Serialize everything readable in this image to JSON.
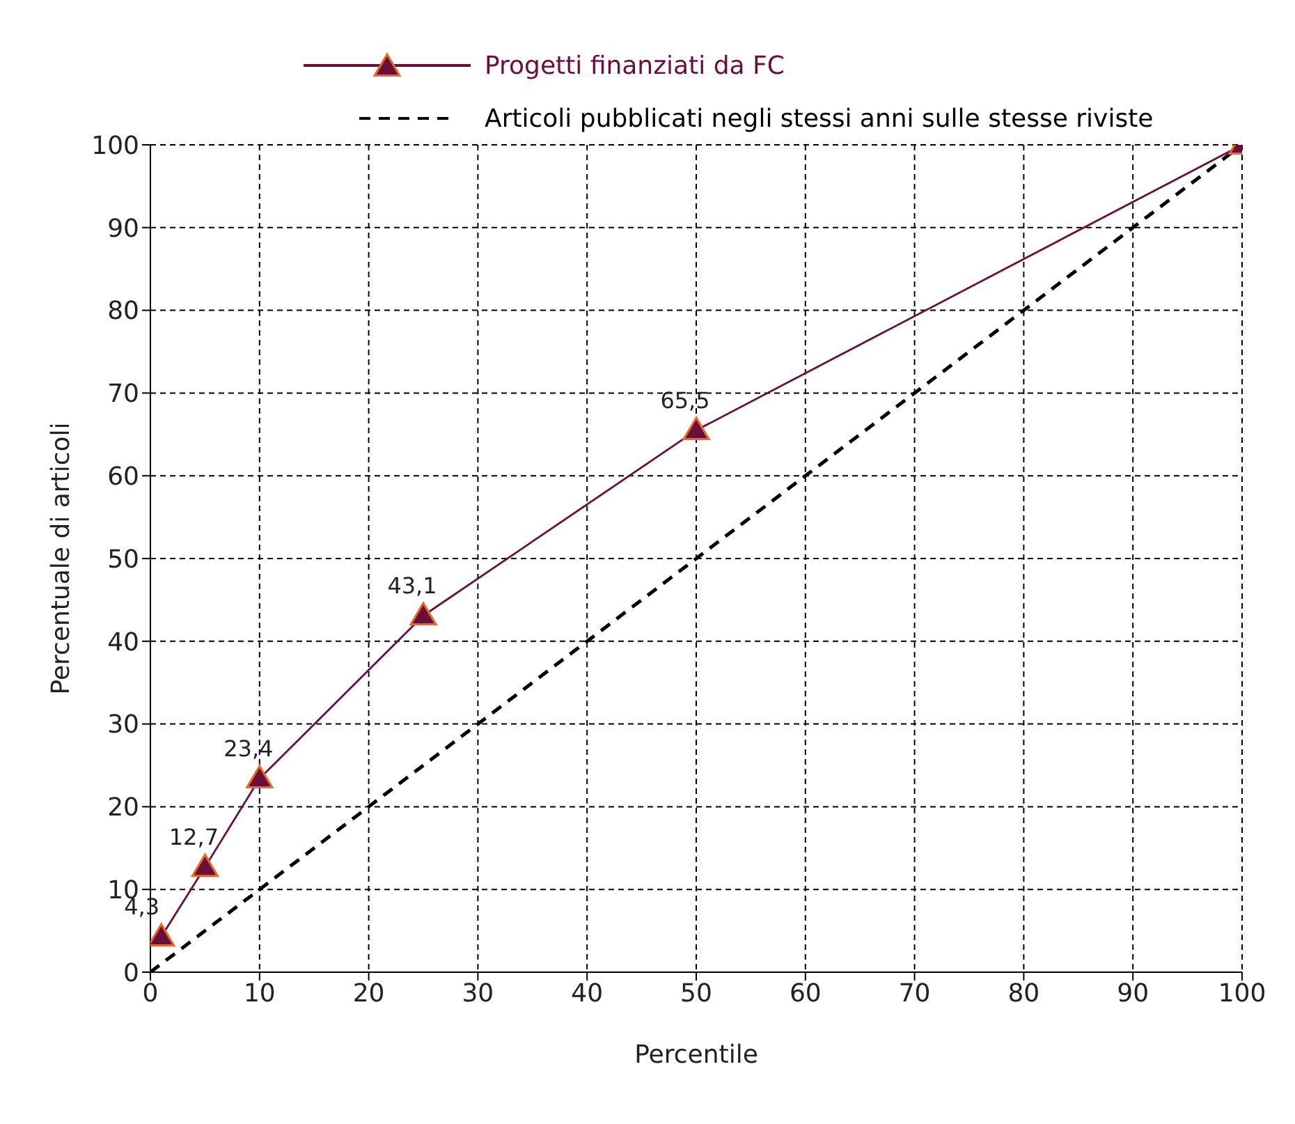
{
  "chart_data": {
    "type": "line",
    "xlabel": "Percentile",
    "ylabel": "Percentuale di articoli",
    "xlim": [
      0,
      100
    ],
    "ylim": [
      0,
      100
    ],
    "xticks": [
      0,
      10,
      20,
      30,
      40,
      50,
      60,
      70,
      80,
      90,
      100
    ],
    "yticks": [
      0,
      10,
      20,
      30,
      40,
      50,
      60,
      70,
      80,
      90,
      100
    ],
    "grid": true,
    "legend": "top",
    "series": [
      {
        "name": "Progetti finanziati da FC",
        "color": "#6b0f3a",
        "x": [
          1,
          5,
          10,
          25,
          50,
          100
        ],
        "values": [
          4.3,
          12.7,
          23.4,
          43.1,
          65.5,
          100
        ],
        "value_labels": [
          "4,3",
          "12,7",
          "23,4",
          "43,1",
          "65,5",
          null
        ],
        "marker": "triangle",
        "line_style": "solid"
      },
      {
        "name": "Articoli pubblicati negli stessi anni sulle stesse riviste",
        "color": "#000000",
        "x": [
          0,
          100
        ],
        "values": [
          0,
          100
        ],
        "marker": "none",
        "line_style": "dashed"
      }
    ]
  }
}
